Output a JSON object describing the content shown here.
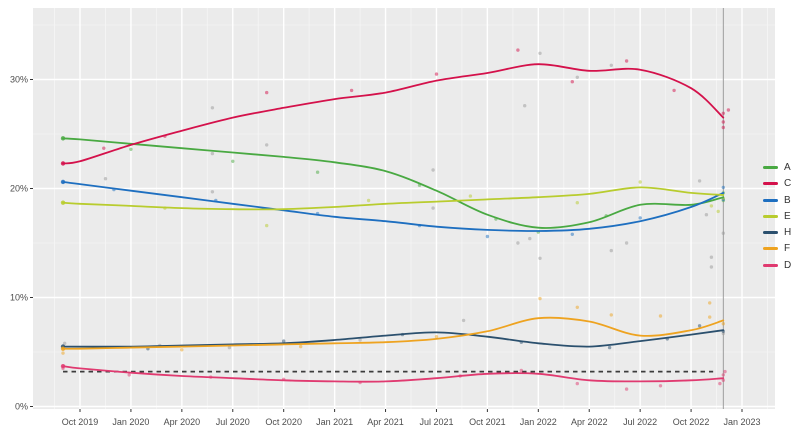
{
  "chart_data": {
    "type": "line",
    "title": "",
    "xlabel": "",
    "ylabel": "",
    "y_axis": {
      "ticks": [
        0,
        10,
        20,
        30
      ],
      "tick_labels": [
        "0%",
        "10%",
        "20%",
        "30%"
      ],
      "minor_ticks": [
        5,
        15,
        25,
        35
      ],
      "ylim": [
        -0.2,
        36.6
      ]
    },
    "x_axis": {
      "tick_labels": [
        "Oct 2019",
        "Jan 2020",
        "Apr 2020",
        "Jul 2020",
        "Oct 2020",
        "Jan 2021",
        "Apr 2021",
        "Jul 2021",
        "Oct 2021",
        "Jan 2022",
        "Apr 2022",
        "Jul 2022",
        "Oct 2022",
        "Jan 2023"
      ],
      "tick_months": [
        0,
        3,
        6,
        9,
        12,
        15,
        18,
        21,
        24,
        27,
        30,
        33,
        36,
        39
      ]
    },
    "grid": {
      "major_color": "#ffffff",
      "minor_color": "#f5f5f5",
      "panel_bg": "#ebebeb"
    },
    "threshold_line": {
      "value": 3.2,
      "style": "dashed",
      "color": "#3c3c3c",
      "start_month": -1,
      "end_month": 37.3
    },
    "event_vline": {
      "month": 37.9,
      "color": "#9d9d9d"
    },
    "trend_months": [
      -1,
      0,
      3,
      6,
      9,
      12,
      15,
      18,
      21,
      24,
      27,
      30,
      33,
      36,
      37.9
    ],
    "series": [
      {
        "name": "A",
        "color": "#49a942",
        "values": [
          24.6,
          24.5,
          24.1,
          23.7,
          23.3,
          22.9,
          22.4,
          21.6,
          19.8,
          17.6,
          16.4,
          16.9,
          18.5,
          18.5,
          19.2
        ]
      },
      {
        "name": "C",
        "color": "#d4114b",
        "values": [
          22.3,
          22.5,
          24.0,
          25.3,
          26.5,
          27.4,
          28.2,
          28.8,
          29.9,
          30.6,
          31.4,
          30.8,
          30.9,
          29.2,
          26.5
        ]
      },
      {
        "name": "B",
        "color": "#1e6fc0",
        "values": [
          20.6,
          20.4,
          19.8,
          19.2,
          18.6,
          18.0,
          17.4,
          17.0,
          16.5,
          16.2,
          16.1,
          16.3,
          17.0,
          18.3,
          19.6
        ]
      },
      {
        "name": "E",
        "color": "#b8cc2e",
        "values": [
          18.7,
          18.6,
          18.4,
          18.2,
          18.1,
          18.1,
          18.3,
          18.6,
          18.8,
          19.0,
          19.2,
          19.5,
          20.1,
          19.6,
          19.4
        ]
      },
      {
        "name": "H",
        "color": "#2b506e",
        "values": [
          5.5,
          5.5,
          5.5,
          5.6,
          5.7,
          5.8,
          6.1,
          6.5,
          6.8,
          6.4,
          5.8,
          5.5,
          6.0,
          6.6,
          7.0
        ]
      },
      {
        "name": "F",
        "color": "#eea320",
        "values": [
          5.3,
          5.3,
          5.4,
          5.5,
          5.6,
          5.7,
          5.8,
          5.9,
          6.2,
          6.9,
          8.1,
          7.8,
          6.5,
          7.0,
          7.9
        ]
      },
      {
        "name": "D",
        "color": "#e03a70",
        "values": [
          3.7,
          3.5,
          3.1,
          2.8,
          2.6,
          2.4,
          2.3,
          2.3,
          2.6,
          3.0,
          3.0,
          2.4,
          2.3,
          2.4,
          2.6
        ]
      }
    ],
    "scatter_color_other": "#9a9a9a",
    "scatter_points": [
      [
        -0.9,
        5.8,
        "gray"
      ],
      [
        1.5,
        20.9,
        "gray"
      ],
      [
        4.7,
        5.6,
        "gray"
      ],
      [
        7.8,
        27.4,
        "gray"
      ],
      [
        7.8,
        23.2,
        "gray"
      ],
      [
        7.8,
        19.7,
        "gray"
      ],
      [
        8.8,
        5.4,
        "gray"
      ],
      [
        11,
        24.0,
        "gray"
      ],
      [
        16.5,
        6.1,
        "gray"
      ],
      [
        20.8,
        21.7,
        "gray"
      ],
      [
        20.8,
        18.2,
        "gray"
      ],
      [
        22.6,
        7.9,
        "gray"
      ],
      [
        25.8,
        15.0,
        "gray"
      ],
      [
        26.5,
        15.4,
        "gray"
      ],
      [
        26.2,
        27.6,
        "gray"
      ],
      [
        27.1,
        32.4,
        "gray"
      ],
      [
        27.1,
        13.6,
        "gray"
      ],
      [
        29.3,
        30.2,
        "gray"
      ],
      [
        31.3,
        31.3,
        "gray"
      ],
      [
        31.3,
        14.3,
        "gray"
      ],
      [
        32.2,
        15.0,
        "gray"
      ],
      [
        36.5,
        20.7,
        "gray"
      ],
      [
        36.9,
        17.6,
        "gray"
      ],
      [
        37.2,
        12.8,
        "gray"
      ],
      [
        37.2,
        13.7,
        "gray"
      ],
      [
        37.9,
        15.9,
        "gray"
      ],
      [
        37.9,
        6.7,
        "gray"
      ],
      [
        3,
        23.6,
        "A"
      ],
      [
        9,
        22.5,
        "A"
      ],
      [
        14,
        21.5,
        "A"
      ],
      [
        20,
        20.3,
        "A"
      ],
      [
        24.5,
        17.2,
        "A"
      ],
      [
        27,
        16.0,
        "A"
      ],
      [
        31,
        17.5,
        "A"
      ],
      [
        37.9,
        19.6,
        "A"
      ],
      [
        37.9,
        18.9,
        "A"
      ],
      [
        1.4,
        23.7,
        "C"
      ],
      [
        5,
        24.8,
        "C"
      ],
      [
        11,
        28.8,
        "C"
      ],
      [
        16,
        29.0,
        "C"
      ],
      [
        21,
        30.5,
        "C"
      ],
      [
        25.8,
        32.7,
        "C"
      ],
      [
        29,
        29.8,
        "C"
      ],
      [
        32.2,
        31.7,
        "C"
      ],
      [
        35,
        29.0,
        "C"
      ],
      [
        37.9,
        26.9,
        "C"
      ],
      [
        37.9,
        26.1,
        "C"
      ],
      [
        37.9,
        25.6,
        "C"
      ],
      [
        38.2,
        27.2,
        "C"
      ],
      [
        2,
        19.9,
        "B"
      ],
      [
        8,
        18.9,
        "B"
      ],
      [
        14,
        17.7,
        "B"
      ],
      [
        20,
        16.6,
        "B"
      ],
      [
        24,
        15.6,
        "B"
      ],
      [
        29,
        15.8,
        "B"
      ],
      [
        33,
        17.3,
        "B"
      ],
      [
        37.9,
        20.1,
        "B"
      ],
      [
        37.9,
        19.0,
        "B"
      ],
      [
        5,
        18.2,
        "E"
      ],
      [
        11,
        16.6,
        "E"
      ],
      [
        17,
        18.9,
        "E"
      ],
      [
        23,
        19.3,
        "E"
      ],
      [
        29.3,
        18.7,
        "E"
      ],
      [
        33,
        20.6,
        "E"
      ],
      [
        37.2,
        18.4,
        "E"
      ],
      [
        37.6,
        17.9,
        "E"
      ],
      [
        37.9,
        19.1,
        "E"
      ],
      [
        4,
        5.3,
        "H"
      ],
      [
        12,
        6.0,
        "H"
      ],
      [
        19,
        6.6,
        "H"
      ],
      [
        26,
        5.9,
        "H"
      ],
      [
        31.2,
        5.4,
        "H"
      ],
      [
        34.6,
        6.2,
        "H"
      ],
      [
        36.5,
        7.4,
        "H"
      ],
      [
        37.9,
        6.9,
        "H"
      ],
      [
        -1,
        4.9,
        "F"
      ],
      [
        6,
        5.2,
        "F"
      ],
      [
        13,
        5.5,
        "F"
      ],
      [
        21,
        6.4,
        "F"
      ],
      [
        27.1,
        9.9,
        "F"
      ],
      [
        29.3,
        9.1,
        "F"
      ],
      [
        31.3,
        8.4,
        "F"
      ],
      [
        34.2,
        8.3,
        "F"
      ],
      [
        37.1,
        9.5,
        "F"
      ],
      [
        37.1,
        8.2,
        "F"
      ],
      [
        37.9,
        7.6,
        "F"
      ],
      [
        -1,
        3.5,
        "D"
      ],
      [
        2.9,
        2.9,
        "D"
      ],
      [
        7.7,
        2.7,
        "D"
      ],
      [
        12,
        2.5,
        "D"
      ],
      [
        16.5,
        2.2,
        "D"
      ],
      [
        22.4,
        2.8,
        "D"
      ],
      [
        26,
        3.3,
        "D"
      ],
      [
        29.3,
        2.1,
        "D"
      ],
      [
        32.2,
        1.6,
        "D"
      ],
      [
        34.2,
        1.9,
        "D"
      ],
      [
        37.9,
        2.9,
        "D"
      ],
      [
        37.9,
        2.4,
        "D"
      ],
      [
        38,
        3.2,
        "D"
      ],
      [
        37.7,
        2.1,
        "D"
      ]
    ],
    "legend": {
      "position": "right",
      "items": [
        "A",
        "C",
        "B",
        "E",
        "H",
        "F",
        "D"
      ]
    }
  }
}
